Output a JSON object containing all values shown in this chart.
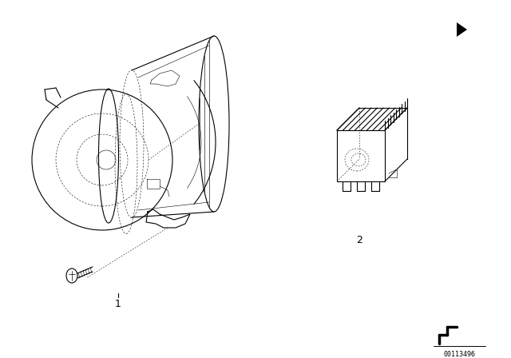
{
  "background_color": "#ffffff",
  "fig_width": 6.4,
  "fig_height": 4.48,
  "dpi": 100,
  "part_label_1": "1",
  "part_label_2": "2",
  "catalog_number": "00113496",
  "lc": "#000000",
  "lw": 0.8,
  "tlw": 0.4
}
